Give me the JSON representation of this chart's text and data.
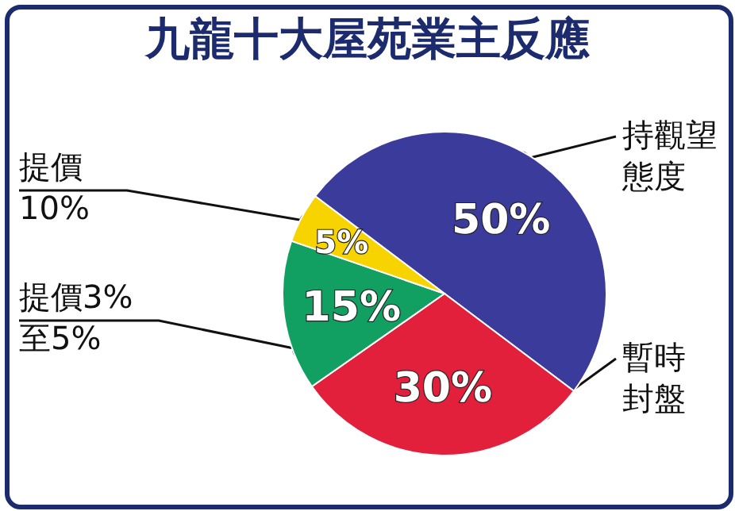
{
  "chart_data": {
    "type": "pie",
    "title": "九龍十大屋苑業主反應",
    "categories": [
      "持觀望態度",
      "暫時封盤",
      "提價3%至5%",
      "提價10%"
    ],
    "values": [
      50,
      30,
      15,
      5
    ],
    "colors": [
      "#3b3b9b",
      "#e3203c",
      "#12a062",
      "#f7d400"
    ],
    "value_labels": [
      "50%",
      "30%",
      "15%",
      "5%"
    ]
  }
}
